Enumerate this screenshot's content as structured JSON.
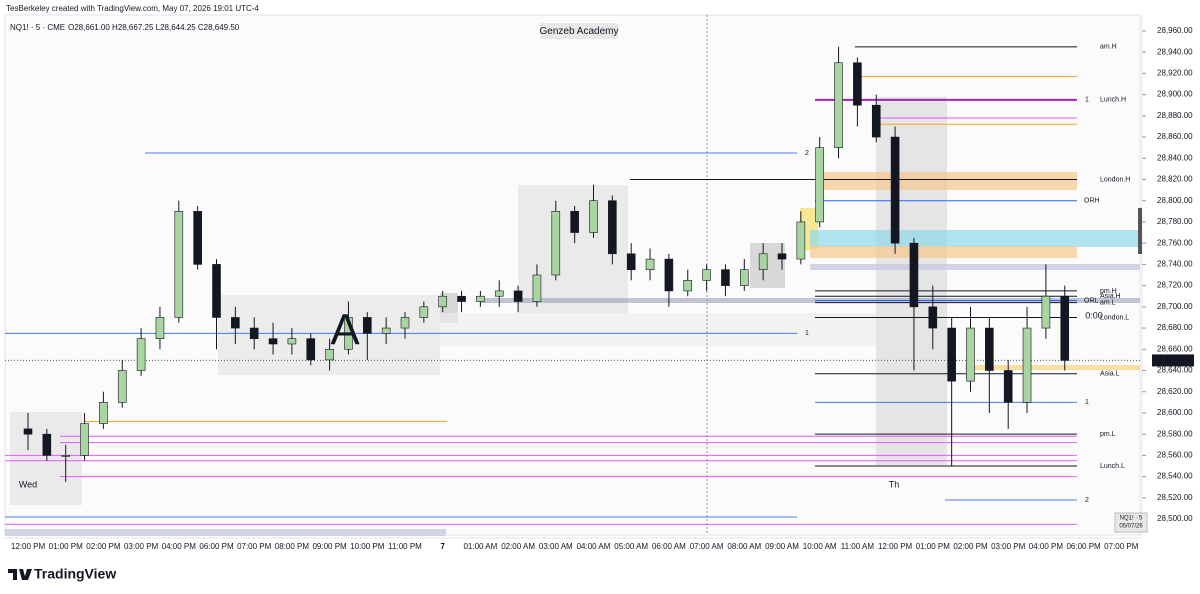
{
  "header": {
    "credit": "TesBerkeley created with TradingView.com, May 07, 2026 19:01 UTC-4",
    "symbol": "NQ1! · 5 · CME",
    "ohlc": "O28,661.00  H28,667.25  L28,644.25  C28,649.50"
  },
  "brand": "TradingView",
  "chart_data": {
    "type": "candlestick",
    "watermark": "Genzeb Academy",
    "annotations": [
      "A",
      "Wed",
      "Th",
      "0:00"
    ],
    "categories": [
      "12:00 PM",
      null,
      "01:00 PM",
      null,
      "02:00 PM",
      null,
      "03:00 PM",
      null,
      "04:00 PM",
      null,
      "06:00 PM",
      null,
      "07:00 PM",
      null,
      "08:00 PM",
      null,
      "09:00 PM",
      null,
      "10:00 PM",
      null,
      "11:00 PM",
      null,
      "7",
      null,
      "01:00 AM",
      null,
      "02:00 AM",
      null,
      "03:00 AM",
      null,
      "04:00 AM",
      null,
      "05:00 AM",
      null,
      "06:00 AM",
      null,
      "07:00 AM",
      null,
      "08:00 AM",
      null,
      "09:00 AM",
      null,
      "10:00 AM",
      null,
      "11:00 AM",
      null,
      "12:00 PM",
      null,
      "01:00 PM",
      null,
      "02:00 PM",
      null,
      "03:00 PM",
      null,
      "04:00 PM",
      null,
      "06:00 PM",
      null,
      "07:00 PM"
    ],
    "open": [
      28585,
      28580,
      28560,
      28560,
      28590,
      28610,
      28640,
      28670,
      28690,
      28790,
      28740,
      28690,
      28680,
      28670,
      28665,
      28670,
      28650,
      28660,
      28690,
      28675,
      28680,
      28690,
      28700,
      28710,
      28705,
      28710,
      28715,
      28705,
      28730,
      28790,
      28770,
      28800,
      28750,
      28735,
      28745,
      28715,
      28725,
      28735,
      28720,
      28735,
      28750,
      28745,
      28780,
      28850,
      28930,
      28890,
      28860,
      28760,
      28700,
      28680,
      28630,
      28680,
      28640,
      28610,
      28680,
      28710,
      null,
      null,
      null
    ],
    "high": [
      28600,
      28585,
      28570,
      28600,
      28620,
      28650,
      28680,
      28700,
      28800,
      28795,
      28745,
      28700,
      28690,
      28685,
      28680,
      28675,
      28670,
      28705,
      28695,
      28690,
      28695,
      28705,
      28715,
      28715,
      28715,
      28725,
      28720,
      28740,
      28800,
      28795,
      28815,
      28805,
      28760,
      28755,
      28750,
      28735,
      28740,
      28740,
      28745,
      28760,
      28760,
      28790,
      28860,
      28945,
      28935,
      28900,
      28870,
      28765,
      28720,
      28690,
      28700,
      28690,
      28650,
      28700,
      28740,
      28720,
      null,
      null,
      null
    ],
    "low": [
      28565,
      28555,
      28535,
      28555,
      28585,
      28605,
      28635,
      28660,
      28685,
      28735,
      28660,
      28665,
      28660,
      28655,
      28655,
      28645,
      28640,
      28655,
      28650,
      28665,
      28670,
      28685,
      28695,
      28695,
      28700,
      28700,
      28695,
      28700,
      28725,
      28760,
      28765,
      28740,
      28725,
      28725,
      28700,
      28710,
      28715,
      28710,
      28715,
      28725,
      28735,
      28740,
      28775,
      28840,
      28870,
      28855,
      28750,
      28640,
      28660,
      28550,
      28620,
      28600,
      28585,
      28600,
      28670,
      28640,
      null,
      null,
      null
    ],
    "close": [
      28580,
      28560,
      28560,
      28590,
      28610,
      28640,
      28670,
      28690,
      28790,
      28740,
      28690,
      28680,
      28670,
      28665,
      28670,
      28650,
      28660,
      28690,
      28675,
      28680,
      28690,
      28700,
      28710,
      28705,
      28710,
      28715,
      28705,
      28730,
      28790,
      28770,
      28800,
      28750,
      28735,
      28745,
      28715,
      28725,
      28735,
      28720,
      28735,
      28750,
      28745,
      28780,
      28850,
      28930,
      28890,
      28860,
      28760,
      28700,
      28680,
      28630,
      28680,
      28640,
      28610,
      28680,
      28710,
      28649.5,
      null,
      null,
      null
    ],
    "up_color": "#a8d5a2",
    "down_color": "#131722",
    "ylim": [
      28485,
      28975
    ],
    "yticks": [
      {
        "value": 28500,
        "label": "28,500.00"
      },
      {
        "value": 28520,
        "label": "28,520.00"
      },
      {
        "value": 28540,
        "label": "28,540.00"
      },
      {
        "value": 28560,
        "label": "28,560.00"
      },
      {
        "value": 28580,
        "label": "28,580.00"
      },
      {
        "value": 28600,
        "label": "28,600.00"
      },
      {
        "value": 28620,
        "label": "28,620.00"
      },
      {
        "value": 28640,
        "label": "28,640.00"
      },
      {
        "value": 28660,
        "label": "28,660.00"
      },
      {
        "value": 28680,
        "label": "28,680.00"
      },
      {
        "value": 28700,
        "label": "28,700.00"
      },
      {
        "value": 28720,
        "label": "28,720.00"
      },
      {
        "value": 28740,
        "label": "28,740.00"
      },
      {
        "value": 28760,
        "label": "28,760.00"
      },
      {
        "value": 28780,
        "label": "28,780.00"
      },
      {
        "value": 28800,
        "label": "28,800.00"
      },
      {
        "value": 28820,
        "label": "28,820.00"
      },
      {
        "value": 28840,
        "label": "28,840.00"
      },
      {
        "value": 28860,
        "label": "28,860.00"
      },
      {
        "value": 28880,
        "label": "28,880.00"
      },
      {
        "value": 28900,
        "label": "28,900.00"
      },
      {
        "value": 28920,
        "label": "28,920.00"
      },
      {
        "value": 28940,
        "label": "28,940.00"
      },
      {
        "value": 28960,
        "label": "28,960.00"
      }
    ],
    "last_price": {
      "value": 28649.5,
      "label": "28,649.50"
    },
    "levels": [
      {
        "label": "am.H",
        "value": 28945,
        "color": "#131722"
      },
      {
        "label": "Lunch.H",
        "value": 28895,
        "color": "#9c27b0"
      },
      {
        "label": "London.H",
        "value": 28820,
        "color": "#131722"
      },
      {
        "label": "ORH",
        "value": 28800,
        "color": "#2962ff"
      },
      {
        "label": "pm.H",
        "value": 28715,
        "color": "#131722"
      },
      {
        "label": "Asia.H",
        "value": 28710,
        "color": "#131722"
      },
      {
        "label": "ORL",
        "value": 28706,
        "color": "#2962ff"
      },
      {
        "label": "am.L",
        "value": 28704,
        "color": "#131722"
      },
      {
        "label": "London.L",
        "value": 28690,
        "color": "#131722"
      },
      {
        "label": "Asia.L",
        "value": 28637,
        "color": "#131722"
      },
      {
        "label": "pm.L",
        "value": 28580,
        "color": "#131722"
      },
      {
        "label": "Lunch.L",
        "value": 28550,
        "color": "#131722"
      }
    ],
    "lines": [
      {
        "value": 28845,
        "color": "#2962ff",
        "label": "2"
      },
      {
        "value": 28675,
        "color": "#2962ff",
        "label": "1"
      },
      {
        "value": 28895,
        "color": "#2962ff",
        "label": "1"
      },
      {
        "value": 28610,
        "color": "#2962ff",
        "label": "1"
      },
      {
        "value": 28518,
        "color": "#2962ff",
        "label": "2"
      },
      {
        "value": 28502,
        "color": "#2962ff"
      },
      {
        "value": 28578,
        "color": "#e040fb"
      },
      {
        "value": 28572,
        "color": "#e040fb"
      },
      {
        "value": 28560,
        "color": "#e040fb"
      },
      {
        "value": 28555,
        "color": "#e040fb"
      },
      {
        "value": 28540,
        "color": "#e040fb"
      },
      {
        "value": 28495,
        "color": "#e040fb"
      },
      {
        "value": 28592,
        "color": "#ff9800"
      },
      {
        "value": 28917,
        "color": "#ff9800"
      },
      {
        "value": 28872,
        "color": "#ff9800"
      },
      {
        "value": 28878,
        "color": "#e040fb"
      }
    ],
    "badge": [
      "NQ1! · 5",
      "05/07/26"
    ]
  }
}
